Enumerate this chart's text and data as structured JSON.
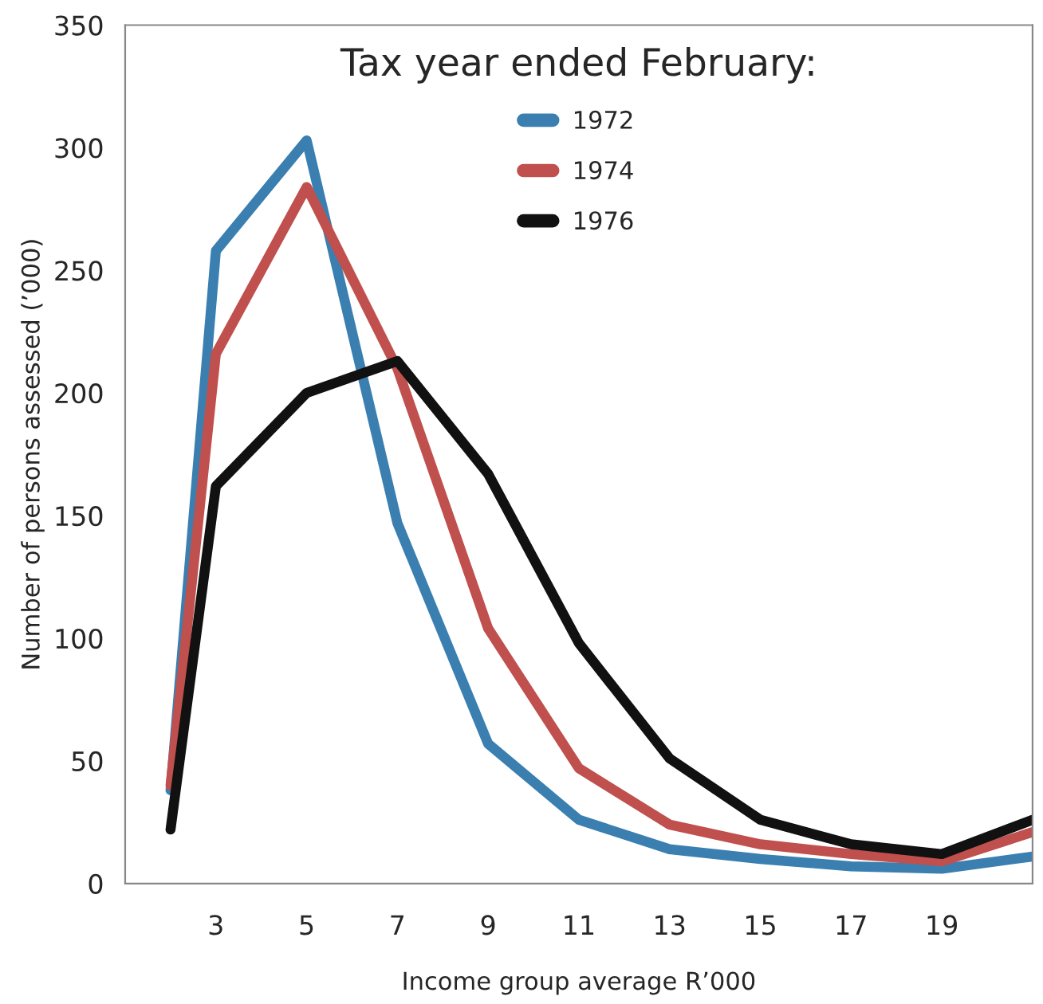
{
  "chart_data": {
    "type": "line",
    "xlabel": "Income group average R’000",
    "ylabel": "Number of persons assessed (’000)",
    "legend_title": "Tax year ended February:",
    "legend": "top",
    "x": [
      2,
      3,
      5,
      7,
      9,
      11,
      13,
      15,
      17,
      19,
      21
    ],
    "series": [
      {
        "name": "1972",
        "color": "#3a7fb0",
        "values": [
          38,
          258,
          303,
          147,
          57,
          26,
          14,
          10,
          7,
          6,
          11
        ]
      },
      {
        "name": "1974",
        "color": "#c0504d",
        "values": [
          40,
          216,
          284,
          210,
          104,
          47,
          24,
          16,
          12,
          9,
          21
        ]
      },
      {
        "name": "1976",
        "color": "#111111",
        "values": [
          22,
          162,
          200,
          213,
          167,
          98,
          51,
          26,
          16,
          12,
          26
        ]
      }
    ],
    "xlim": [
      1,
      21
    ],
    "xticks": [
      3,
      5,
      7,
      9,
      11,
      13,
      15,
      17,
      19
    ],
    "ylim": [
      0,
      350
    ],
    "yticks": [
      0,
      50,
      100,
      150,
      200,
      250,
      300,
      350
    ],
    "grid": false,
    "marker": "none",
    "line_style": "solid"
  }
}
